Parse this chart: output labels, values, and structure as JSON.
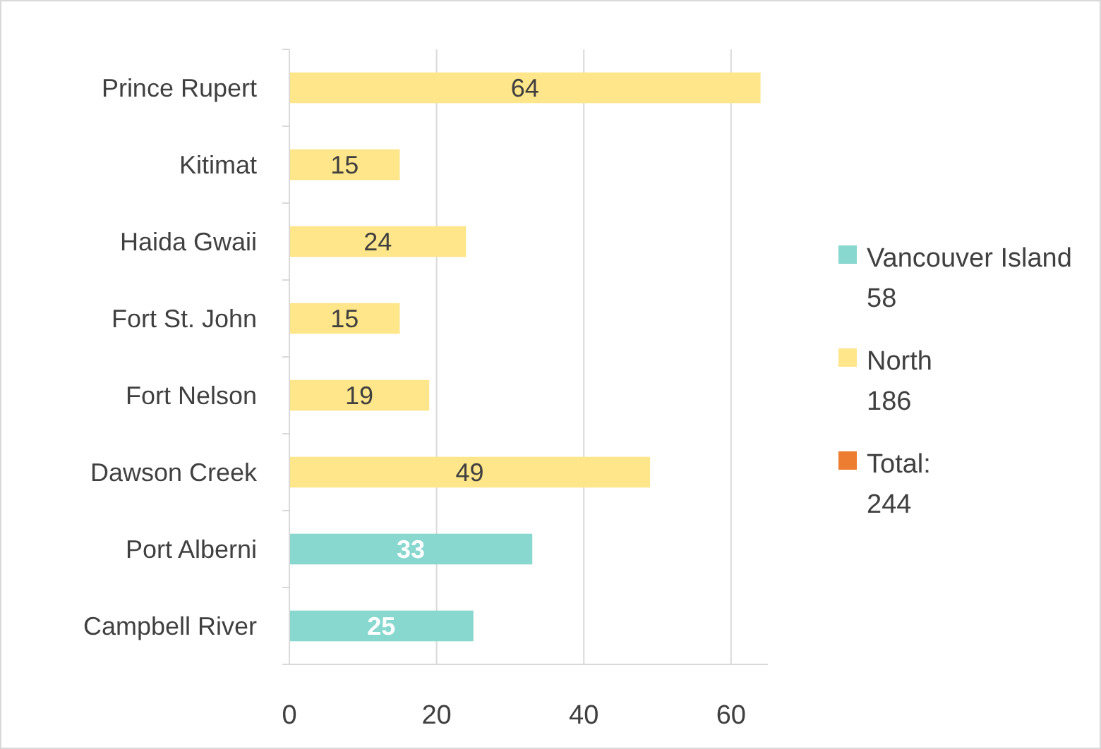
{
  "chart_data": {
    "type": "bar",
    "orientation": "horizontal",
    "categories": [
      "Prince Rupert",
      "Kitimat",
      "Haida Gwaii",
      "Fort St. John",
      "Fort Nelson",
      "Dawson Creek",
      "Port Alberni",
      "Campbell River"
    ],
    "series": [
      {
        "name": "Vancouver Island\n58",
        "color": "#88d8d0",
        "values": [
          null,
          null,
          null,
          null,
          null,
          null,
          33,
          25
        ]
      },
      {
        "name": "North\n186",
        "color": "#ffe68a",
        "values": [
          64,
          15,
          24,
          15,
          19,
          49,
          null,
          null
        ]
      },
      {
        "name": "Total:\n244",
        "color": "#ed7d31",
        "values": [
          null,
          null,
          null,
          null,
          null,
          null,
          null,
          null
        ]
      }
    ],
    "xlim": [
      0,
      65
    ],
    "xticks": [
      0,
      20,
      40,
      60
    ],
    "grid": "x",
    "legend": "right",
    "data_labels": true
  }
}
